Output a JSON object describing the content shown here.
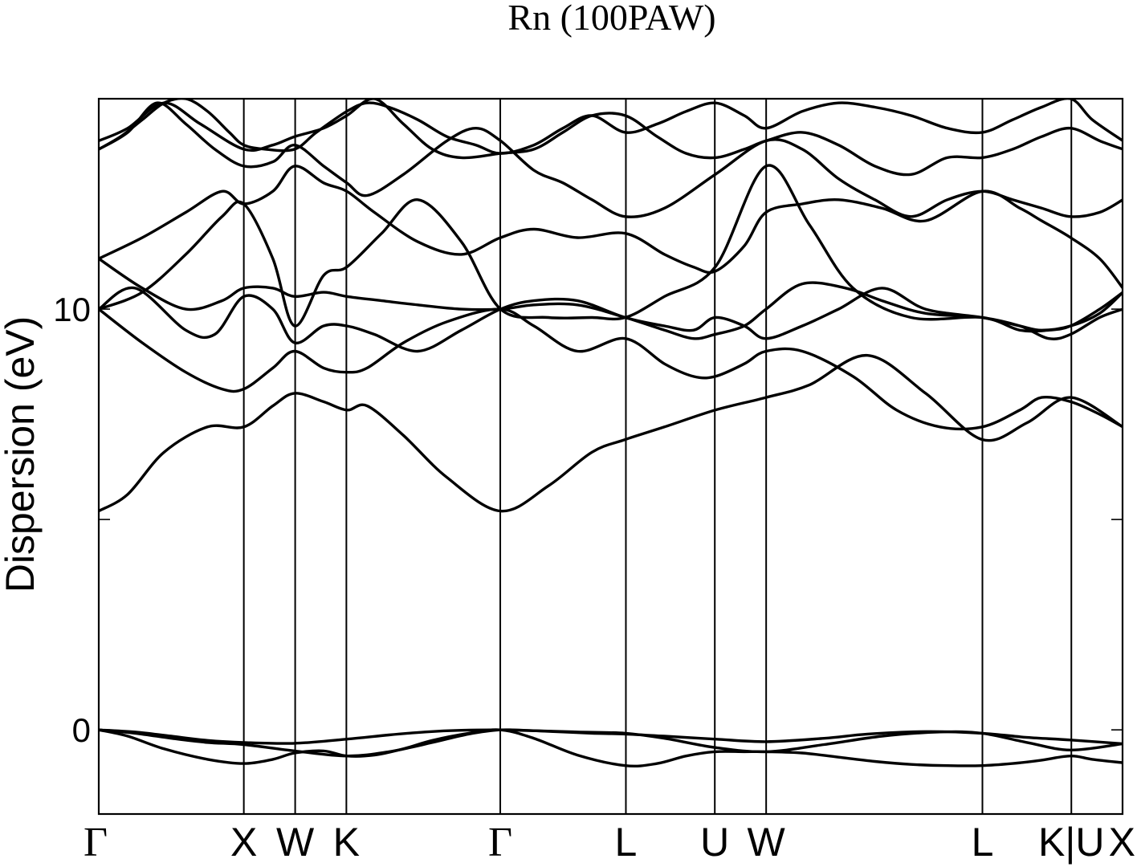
{
  "chart_data": {
    "type": "line",
    "title": "Rn (100PAW)",
    "xlabel": "",
    "ylabel": "Dispersion (eV)",
    "ylim": [
      -2.0,
      15.0
    ],
    "yticks": [
      0,
      5,
      10,
      15
    ],
    "ytick_labels": [
      "0",
      "10"
    ],
    "grid": false,
    "legend": "none",
    "line_color": "#000000",
    "kpath": {
      "labels": [
        "Γ",
        "X",
        "W",
        "K",
        "Γ",
        "L",
        "U",
        "W",
        "L",
        "K|U",
        "X"
      ],
      "positions": [
        0.0,
        1.0,
        1.354,
        1.707,
        2.768,
        3.634,
        4.247,
        4.601,
        6.092,
        6.705,
        7.058
      ],
      "label_styles": [
        "greek",
        "latin",
        "latin",
        "latin",
        "greek",
        "latin",
        "latin",
        "latin",
        "latin",
        "latin",
        "latin"
      ]
    },
    "series": [
      {
        "x": [
          0,
          0.25,
          0.5,
          0.75,
          1,
          1.35,
          1.71,
          2.0,
          2.25,
          2.5,
          2.77,
          3.0,
          3.2,
          3.4,
          3.63,
          3.9,
          4.25,
          4.6,
          5.0,
          5.3,
          5.7,
          6.09,
          6.4,
          6.7,
          7.06
        ],
        "y": [
          0,
          -0.05,
          -0.15,
          -0.25,
          -0.3,
          -0.32,
          -0.22,
          -0.12,
          -0.05,
          -0.01,
          0,
          -0.02,
          -0.05,
          -0.08,
          -0.1,
          -0.15,
          -0.22,
          -0.28,
          -0.2,
          -0.1,
          -0.04,
          -0.08,
          -0.18,
          -0.24,
          -0.33
        ]
      },
      {
        "x": [
          0,
          0.25,
          0.5,
          0.75,
          1,
          1.35,
          1.71,
          2.0,
          2.3,
          2.55,
          2.77,
          3.0,
          3.3,
          3.63,
          3.9,
          4.25,
          4.6,
          5.0,
          5.4,
          5.8,
          6.09,
          6.4,
          6.7,
          7.06
        ],
        "y": [
          0,
          -0.08,
          -0.2,
          -0.3,
          -0.35,
          -0.5,
          -0.62,
          -0.52,
          -0.3,
          -0.1,
          0,
          -0.02,
          -0.05,
          -0.08,
          -0.2,
          -0.42,
          -0.52,
          -0.35,
          -0.15,
          -0.05,
          -0.08,
          -0.3,
          -0.48,
          -0.33
        ]
      },
      {
        "x": [
          0,
          0.2,
          0.45,
          0.75,
          1,
          1.2,
          1.35,
          1.55,
          1.71,
          1.9,
          2.1,
          2.3,
          2.55,
          2.77,
          3.0,
          3.3,
          3.63,
          3.85,
          4.05,
          4.25,
          4.45,
          4.6,
          4.85,
          5.1,
          5.35,
          5.6,
          5.85,
          6.09,
          6.3,
          6.5,
          6.7,
          6.85,
          7.06
        ],
        "y": [
          0,
          -0.15,
          -0.45,
          -0.7,
          -0.8,
          -0.7,
          -0.55,
          -0.5,
          -0.62,
          -0.6,
          -0.45,
          -0.25,
          -0.08,
          0,
          -0.2,
          -0.6,
          -0.85,
          -0.8,
          -0.62,
          -0.52,
          -0.52,
          -0.52,
          -0.55,
          -0.65,
          -0.75,
          -0.82,
          -0.85,
          -0.85,
          -0.8,
          -0.72,
          -0.62,
          -0.7,
          -0.78
        ]
      },
      {
        "x": [
          0,
          0.2,
          0.45,
          0.75,
          1,
          1.2,
          1.35,
          1.55,
          1.71,
          1.85,
          2.1,
          2.4,
          2.77,
          3.1,
          3.4,
          3.63,
          3.9,
          4.25,
          4.6,
          4.9,
          5.3,
          5.7,
          6.09,
          6.4,
          6.7,
          7.06
        ],
        "y": [
          5.2,
          5.6,
          6.6,
          7.2,
          7.2,
          7.7,
          8.0,
          7.8,
          7.6,
          7.7,
          7.0,
          6.0,
          5.2,
          5.8,
          6.6,
          6.9,
          7.2,
          7.6,
          7.9,
          8.2,
          8.9,
          8.0,
          6.9,
          7.3,
          7.9,
          7.2
        ]
      },
      {
        "x": [
          0,
          0.3,
          0.6,
          0.85,
          1,
          1.2,
          1.35,
          1.55,
          1.71,
          1.85,
          2.1,
          2.4,
          2.77,
          3.0,
          3.3,
          3.63,
          3.9,
          4.1,
          4.25,
          4.45,
          4.6,
          4.85,
          5.2,
          5.5,
          5.8,
          6.09,
          6.35,
          6.5,
          6.7,
          6.9,
          7.06
        ],
        "y": [
          10.0,
          9.2,
          8.5,
          8.1,
          8.1,
          8.6,
          9.0,
          8.6,
          8.5,
          8.6,
          9.2,
          9.7,
          10.0,
          9.6,
          9.0,
          9.3,
          8.7,
          8.4,
          8.4,
          8.7,
          9.0,
          9.0,
          8.4,
          7.6,
          7.2,
          7.2,
          7.6,
          7.9,
          7.8,
          7.5,
          7.2
        ]
      },
      {
        "x": [
          0,
          0.25,
          0.6,
          0.8,
          1,
          1.2,
          1.35,
          1.55,
          1.71,
          1.9,
          2.2,
          2.5,
          2.77,
          3.0,
          3.3,
          3.63,
          3.9,
          4.1,
          4.25,
          4.45,
          4.6,
          4.85,
          5.1,
          5.4,
          5.7,
          6.09,
          6.35,
          6.5,
          6.7,
          6.9,
          7.06
        ],
        "y": [
          10.0,
          10.5,
          9.5,
          9.4,
          10.3,
          10.0,
          9.2,
          9.6,
          9.6,
          9.4,
          9.0,
          9.5,
          10.0,
          10.2,
          10.2,
          9.8,
          9.6,
          9.5,
          9.8,
          9.6,
          9.3,
          9.6,
          10.0,
          10.5,
          10.0,
          9.8,
          9.6,
          9.5,
          9.6,
          9.9,
          10.4
        ]
      },
      {
        "x": [
          0,
          0.3,
          0.6,
          0.85,
          1,
          1.2,
          1.35,
          1.55,
          1.71,
          1.95,
          2.2,
          2.5,
          2.77,
          3.1,
          3.4,
          3.63,
          3.9,
          4.25,
          4.6,
          4.9,
          5.2,
          5.6,
          6.09,
          6.35,
          6.55,
          6.7,
          6.9,
          7.06
        ],
        "y": [
          10.0,
          10.4,
          11.3,
          12.2,
          12.5,
          11.2,
          9.6,
          10.8,
          11.0,
          11.8,
          12.6,
          11.6,
          10.0,
          9.8,
          9.8,
          9.8,
          10.3,
          11.0,
          13.4,
          12.0,
          10.5,
          9.8,
          9.8,
          9.5,
          9.5,
          9.6,
          10.0,
          10.4
        ]
      },
      {
        "x": [
          0,
          0.3,
          0.6,
          0.85,
          1,
          1.2,
          1.35,
          1.55,
          1.71,
          1.95,
          2.2,
          2.5,
          2.77,
          3.0,
          3.3,
          3.63,
          3.9,
          4.1,
          4.25,
          4.45,
          4.6,
          4.85,
          5.15,
          5.4,
          5.7,
          6.09,
          6.35,
          6.55,
          6.7,
          6.9,
          7.06
        ],
        "y": [
          11.2,
          10.5,
          10.0,
          10.2,
          10.5,
          10.5,
          10.3,
          10.4,
          10.3,
          10.2,
          10.1,
          10.0,
          10.0,
          10.1,
          10.1,
          9.8,
          9.5,
          9.3,
          9.4,
          9.6,
          10.0,
          10.6,
          10.5,
          10.2,
          9.9,
          9.8,
          9.6,
          9.3,
          9.4,
          9.8,
          10.0
        ]
      },
      {
        "x": [
          0,
          0.3,
          0.6,
          0.85,
          1,
          1.2,
          1.35,
          1.55,
          1.71,
          1.9,
          2.2,
          2.5,
          2.77,
          3.0,
          3.3,
          3.63,
          3.9,
          4.1,
          4.25,
          4.45,
          4.6,
          4.85,
          5.1,
          5.4,
          5.7,
          6.09,
          6.35,
          6.5,
          6.7,
          6.9,
          7.06
        ],
        "y": [
          11.2,
          11.7,
          12.3,
          12.8,
          12.5,
          12.8,
          13.4,
          13.0,
          12.8,
          12.3,
          11.6,
          11.3,
          11.7,
          11.9,
          11.7,
          11.8,
          11.3,
          11.0,
          10.9,
          11.5,
          12.3,
          12.5,
          12.6,
          12.4,
          12.1,
          12.8,
          12.4,
          12.1,
          11.7,
          11.2,
          10.5
        ]
      },
      {
        "x": [
          0,
          0.2,
          0.4,
          0.6,
          0.8,
          1,
          1.2,
          1.35,
          1.55,
          1.71,
          1.85,
          2.1,
          2.4,
          2.6,
          2.77,
          3.0,
          3.2,
          3.4,
          3.63,
          3.9,
          4.25,
          4.6,
          4.85,
          5.1,
          5.35,
          5.6,
          5.85,
          6.09,
          6.3,
          6.5,
          6.7,
          6.9,
          7.06
        ],
        "y": [
          13.8,
          14.2,
          14.9,
          14.4,
          13.8,
          13.4,
          13.5,
          13.9,
          13.4,
          13.0,
          12.7,
          13.2,
          14.0,
          14.3,
          14.0,
          13.3,
          13.0,
          12.6,
          12.2,
          12.4,
          13.2,
          14.0,
          13.8,
          13.1,
          12.6,
          12.2,
          12.6,
          12.8,
          12.6,
          12.4,
          12.2,
          12.3,
          12.6
        ]
      },
      {
        "x": [
          0,
          0.2,
          0.45,
          0.7,
          1,
          1.2,
          1.35,
          1.55,
          1.71,
          1.9,
          2.1,
          2.3,
          2.5,
          2.77,
          3.0,
          3.2,
          3.4,
          3.63,
          3.85,
          4.05,
          4.25,
          4.45,
          4.6,
          4.85,
          5.1,
          5.35,
          5.6,
          5.85,
          6.09,
          6.3,
          6.5,
          6.7,
          6.9,
          7.06
        ],
        "y": [
          14.0,
          14.3,
          14.9,
          14.4,
          13.8,
          13.9,
          14.1,
          14.3,
          14.6,
          15.0,
          14.4,
          13.8,
          13.6,
          13.7,
          13.8,
          14.2,
          14.6,
          14.6,
          14.1,
          13.7,
          13.6,
          13.8,
          14.0,
          14.2,
          13.9,
          13.4,
          13.2,
          13.6,
          13.6,
          13.8,
          14.1,
          14.3,
          14.0,
          13.8
        ]
      },
      {
        "x": [
          0,
          0.15,
          0.3,
          0.45,
          0.6,
          0.75,
          0.9,
          1.0,
          1.15,
          1.35,
          1.5,
          1.71,
          1.85,
          2.0,
          2.2,
          2.4,
          2.6,
          2.77,
          3.0,
          3.2,
          3.4,
          3.63,
          3.85,
          4.05,
          4.25,
          4.45,
          4.6,
          4.85,
          5.1,
          5.35,
          5.6,
          5.85,
          6.09,
          6.3,
          6.5,
          6.7,
          6.85,
          7.06
        ],
        "y": [
          13.8,
          14.1,
          14.5,
          14.9,
          15.0,
          14.7,
          14.2,
          13.9,
          13.8,
          13.8,
          14.2,
          14.7,
          14.9,
          14.8,
          14.5,
          14.1,
          13.9,
          13.7,
          13.9,
          14.3,
          14.6,
          14.2,
          14.4,
          14.7,
          14.9,
          14.6,
          14.3,
          14.7,
          14.9,
          14.8,
          14.6,
          14.3,
          14.2,
          14.5,
          14.8,
          15.0,
          14.5,
          14.0
        ]
      }
    ]
  }
}
